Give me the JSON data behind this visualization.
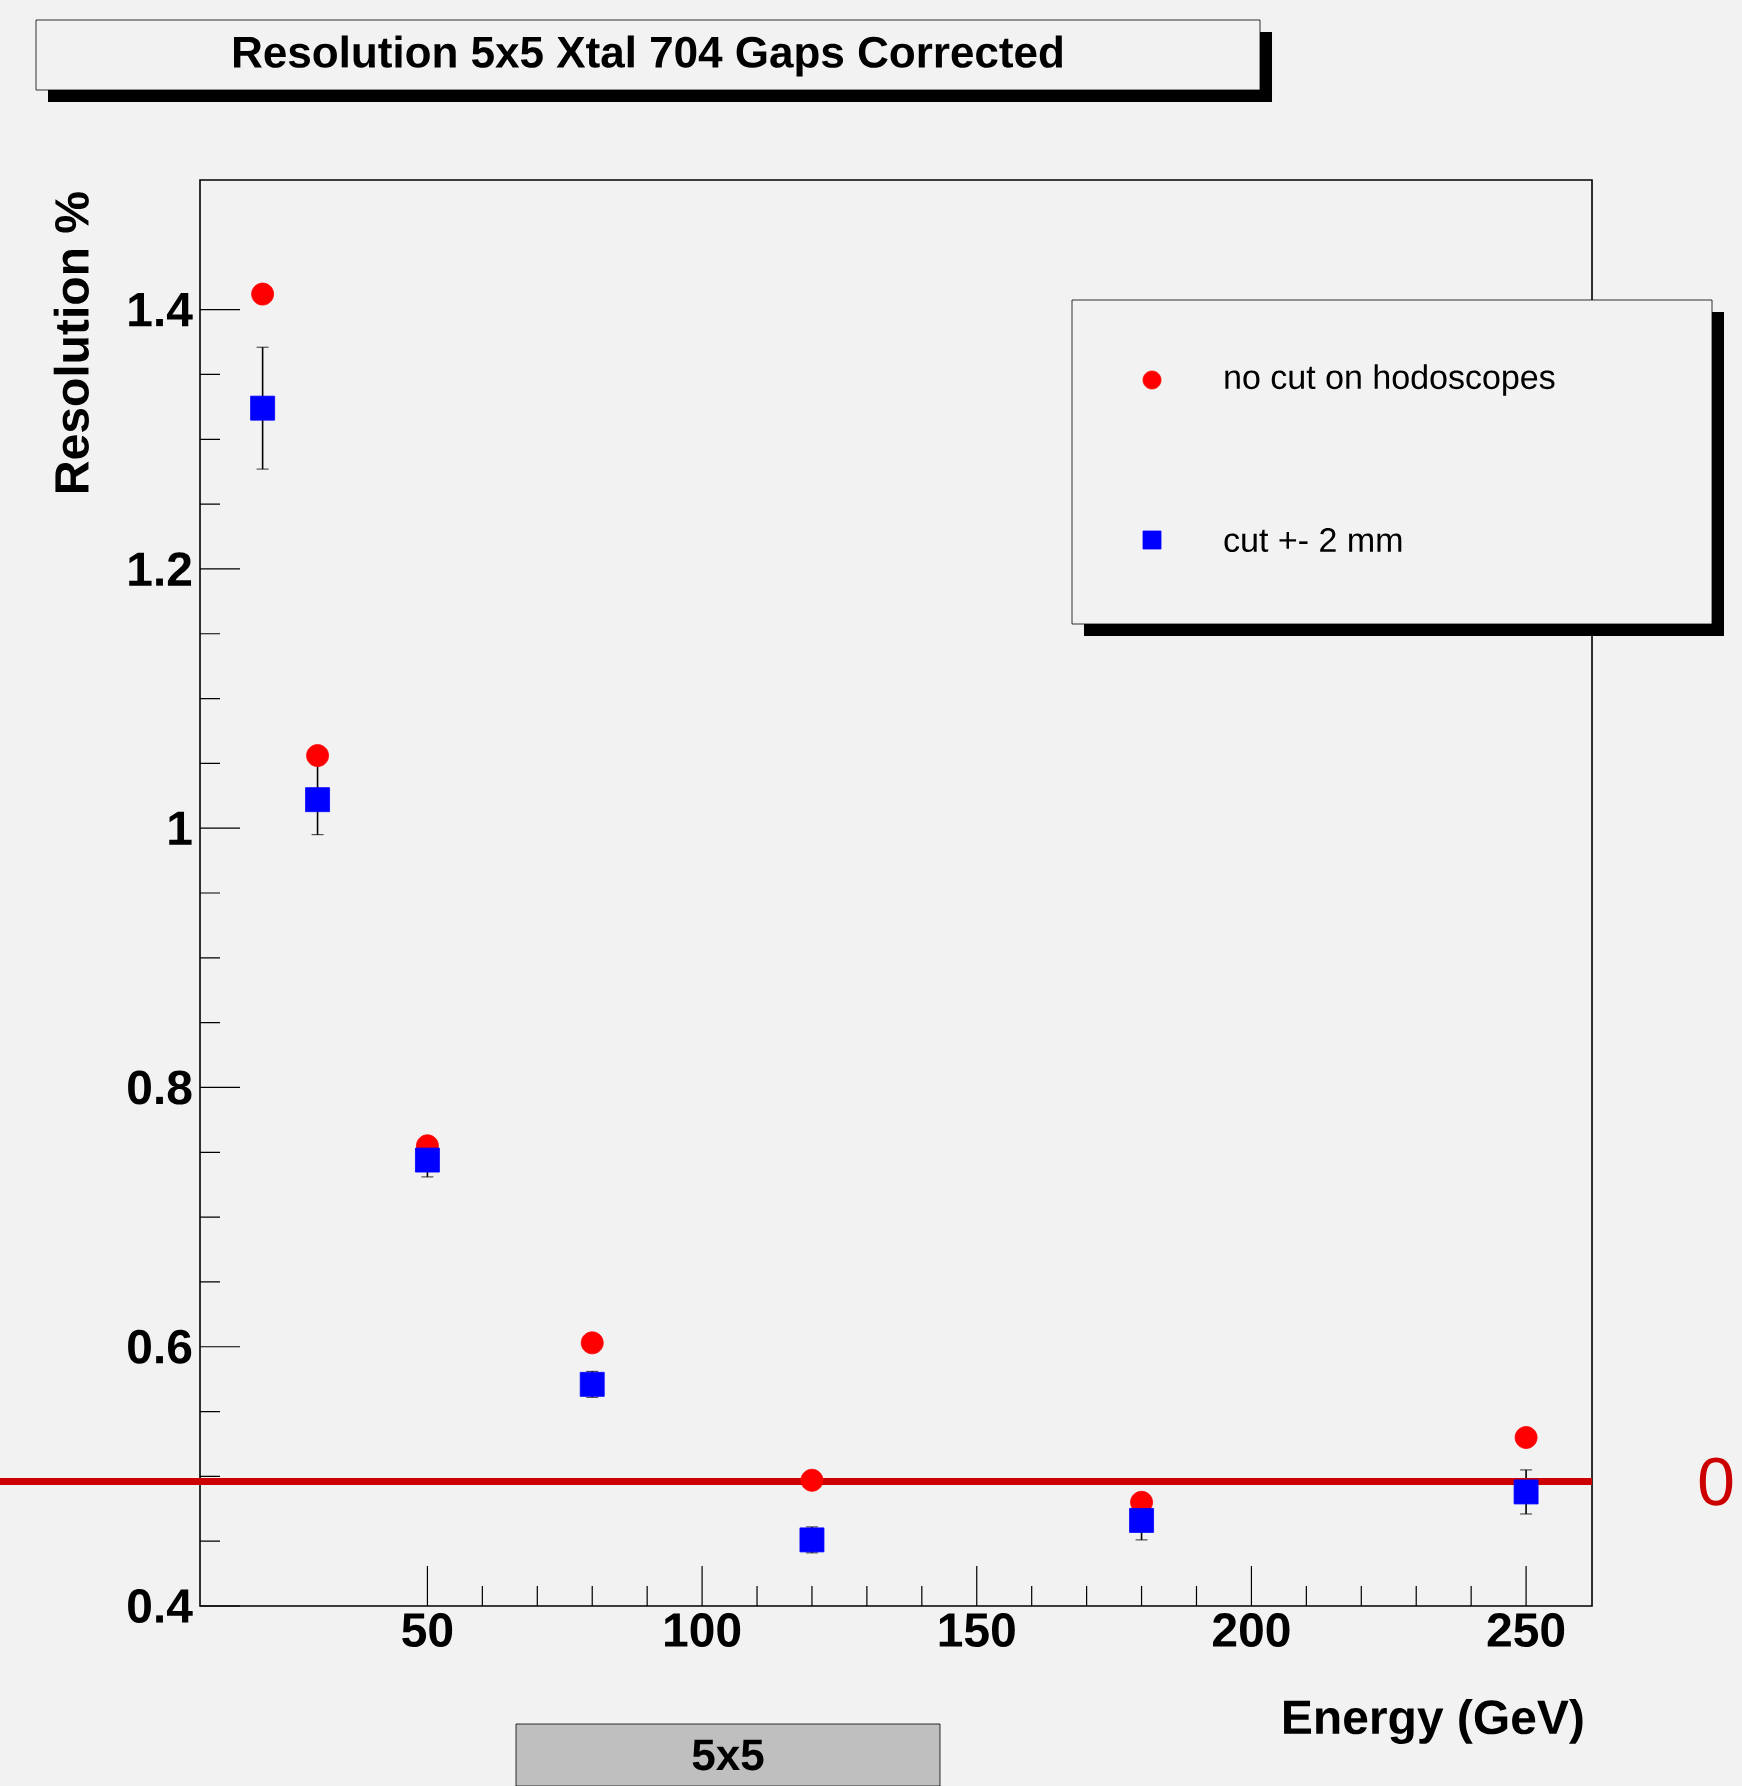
{
  "chart_data": {
    "type": "scatter",
    "title": "Resolution 5x5 Xtal 704 Gaps Corrected",
    "xlabel": "Energy (GeV)",
    "ylabel": "Resolution %",
    "x": [
      20,
      30,
      50,
      80,
      120,
      180,
      250
    ],
    "series": [
      {
        "name": "no cut on hodoscopes",
        "color": "#ff0000",
        "marker": "circle",
        "values": [
          1.412,
          1.056,
          0.755,
          0.603,
          0.497,
          0.48,
          0.53
        ]
      },
      {
        "name": "cut +- 2 mm",
        "color": "#0000ff",
        "marker": "square",
        "values": [
          1.324,
          1.022,
          0.744,
          0.571,
          0.451,
          0.466,
          0.488
        ],
        "errors": [
          0.047,
          0.027,
          0.013,
          0.01,
          0.01,
          0.015,
          0.017
        ]
      }
    ],
    "xlim": [
      8.6,
      262
    ],
    "ylim": [
      0.4,
      1.5
    ],
    "xticks": [
      50,
      100,
      150,
      200,
      250
    ],
    "yticks": [
      0.4,
      0.6,
      0.8,
      1,
      1.2,
      1.4
    ],
    "legend": "top right",
    "grid": false,
    "ref_lines": [
      {
        "axis": "y",
        "value": 0.496,
        "label": "0",
        "color": "#cc0000"
      }
    ],
    "annotations": [
      "5x5"
    ]
  }
}
